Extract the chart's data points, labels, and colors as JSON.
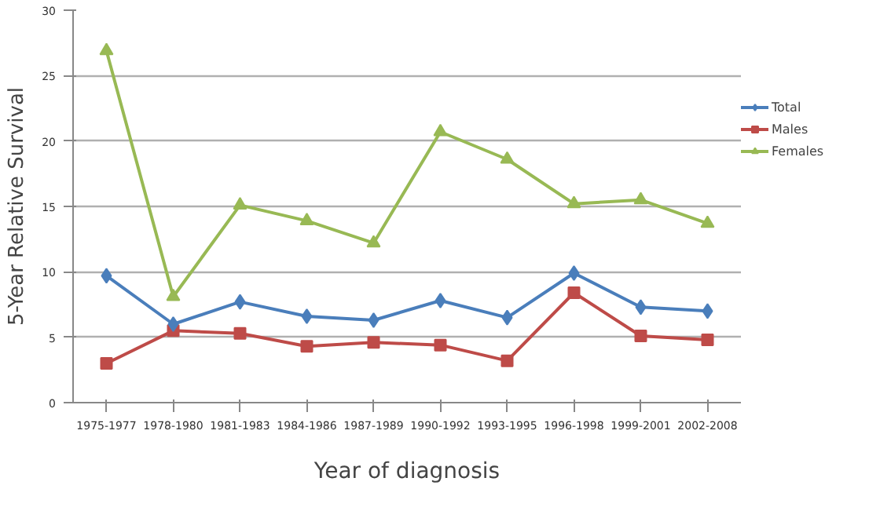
{
  "chart_data": {
    "type": "line",
    "xlabel": "Year of diagnosis",
    "ylabel": "5-Year Relative Survival",
    "categories": [
      "1975-1977",
      "1978-1980",
      "1981-1983",
      "1984-1986",
      "1987-1989",
      "1990-1992",
      "1993-1995",
      "1996-1998",
      "1999-2001",
      "2002-2008"
    ],
    "series": [
      {
        "name": "Total",
        "color": "#4a7ebb",
        "marker": "diamond",
        "values": [
          9.7,
          6.0,
          7.7,
          6.6,
          6.3,
          7.8,
          6.5,
          9.9,
          7.3,
          7.0
        ]
      },
      {
        "name": "Males",
        "color": "#be4b48",
        "marker": "square",
        "values": [
          3.0,
          5.5,
          5.3,
          4.3,
          4.6,
          4.4,
          3.2,
          8.4,
          5.1,
          4.8
        ]
      },
      {
        "name": "Females",
        "color": "#98b954",
        "marker": "triangle",
        "values": [
          26.9,
          8.1,
          15.1,
          13.9,
          12.2,
          20.7,
          18.6,
          15.2,
          15.5,
          13.7
        ]
      }
    ],
    "ylim": [
      0,
      30
    ],
    "yticks": [
      0,
      5,
      10,
      15,
      20,
      25,
      30
    ],
    "grid": "y",
    "legend": "right",
    "line_style": "solid"
  }
}
